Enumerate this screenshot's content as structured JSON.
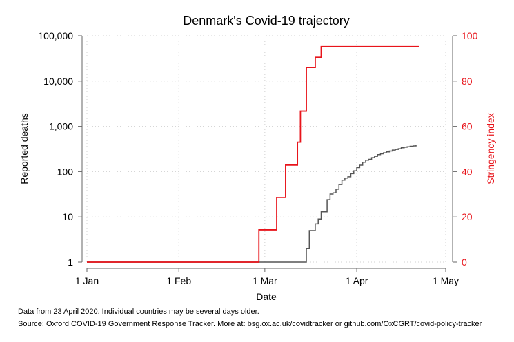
{
  "chart_data": {
    "type": "line",
    "title": "Denmark's Covid-19 trajectory",
    "xlabel": "Date",
    "ylabel_left": "Reported deaths",
    "ylabel_right": "Stringency index",
    "x_ticks": [
      {
        "date": "2020-01-01",
        "label": "1 Jan"
      },
      {
        "date": "2020-02-01",
        "label": "1 Feb"
      },
      {
        "date": "2020-03-01",
        "label": "1 Mar"
      },
      {
        "date": "2020-04-01",
        "label": "1 Apr"
      },
      {
        "date": "2020-05-01",
        "label": "1 May"
      }
    ],
    "xlim": [
      "2020-01-01",
      "2020-05-01"
    ],
    "y_left": {
      "scale": "log",
      "lim": [
        1,
        100000
      ],
      "ticks": [
        {
          "value": 1,
          "label": "1"
        },
        {
          "value": 10,
          "label": "10"
        },
        {
          "value": 100,
          "label": "100"
        },
        {
          "value": 1000,
          "label": "1,000"
        },
        {
          "value": 10000,
          "label": "10,000"
        },
        {
          "value": 100000,
          "label": "100,000"
        }
      ]
    },
    "y_right": {
      "scale": "linear",
      "lim": [
        0,
        100
      ],
      "ticks": [
        0,
        20,
        40,
        60,
        80,
        100
      ]
    },
    "grid": true,
    "series": [
      {
        "name": "Reported deaths",
        "axis": "left",
        "color": "#555555",
        "step": true,
        "points": [
          [
            "2020-01-01",
            1
          ],
          [
            "2020-03-14",
            1
          ],
          [
            "2020-03-15",
            2
          ],
          [
            "2020-03-16",
            2
          ],
          [
            "2020-03-16",
            5
          ],
          [
            "2020-03-17",
            5
          ],
          [
            "2020-03-18",
            7
          ],
          [
            "2020-03-19",
            9
          ],
          [
            "2020-03-20",
            13
          ],
          [
            "2020-03-21",
            13
          ],
          [
            "2020-03-22",
            24
          ],
          [
            "2020-03-23",
            32
          ],
          [
            "2020-03-24",
            34
          ],
          [
            "2020-03-25",
            41
          ],
          [
            "2020-03-26",
            52
          ],
          [
            "2020-03-27",
            65
          ],
          [
            "2020-03-28",
            72
          ],
          [
            "2020-03-29",
            77
          ],
          [
            "2020-03-30",
            90
          ],
          [
            "2020-03-31",
            104
          ],
          [
            "2020-04-01",
            123
          ],
          [
            "2020-04-02",
            139
          ],
          [
            "2020-04-03",
            161
          ],
          [
            "2020-04-04",
            179
          ],
          [
            "2020-04-05",
            187
          ],
          [
            "2020-04-06",
            203
          ],
          [
            "2020-04-07",
            218
          ],
          [
            "2020-04-08",
            237
          ],
          [
            "2020-04-09",
            247
          ],
          [
            "2020-04-10",
            260
          ],
          [
            "2020-04-11",
            273
          ],
          [
            "2020-04-12",
            285
          ],
          [
            "2020-04-13",
            299
          ],
          [
            "2020-04-14",
            309
          ],
          [
            "2020-04-15",
            321
          ],
          [
            "2020-04-16",
            336
          ],
          [
            "2020-04-17",
            346
          ],
          [
            "2020-04-18",
            355
          ],
          [
            "2020-04-19",
            364
          ],
          [
            "2020-04-20",
            370
          ],
          [
            "2020-04-21",
            384
          ]
        ]
      },
      {
        "name": "Stringency index",
        "axis": "right",
        "color": "#e8141b",
        "step": true,
        "points": [
          [
            "2020-01-01",
            0
          ],
          [
            "2020-02-27",
            0
          ],
          [
            "2020-02-28",
            14.3
          ],
          [
            "2020-03-04",
            14.3
          ],
          [
            "2020-03-05",
            28.6
          ],
          [
            "2020-03-07",
            28.6
          ],
          [
            "2020-03-08",
            42.9
          ],
          [
            "2020-03-11",
            42.9
          ],
          [
            "2020-03-12",
            53
          ],
          [
            "2020-03-13",
            66.7
          ],
          [
            "2020-03-14",
            66.7
          ],
          [
            "2020-03-15",
            86
          ],
          [
            "2020-03-17",
            86
          ],
          [
            "2020-03-18",
            90.5
          ],
          [
            "2020-03-19",
            90.5
          ],
          [
            "2020-03-20",
            95.2
          ],
          [
            "2020-04-22",
            95.2
          ]
        ]
      }
    ]
  },
  "notes": {
    "line1": "Data from 23 April 2020. Individual countries may be several days older.",
    "line2": "Source: Oxford COVID-19 Government Response Tracker. More at: bsg.ox.ac.uk/covidtracker or github.com/OxCGRT/covid-policy-tracker"
  }
}
